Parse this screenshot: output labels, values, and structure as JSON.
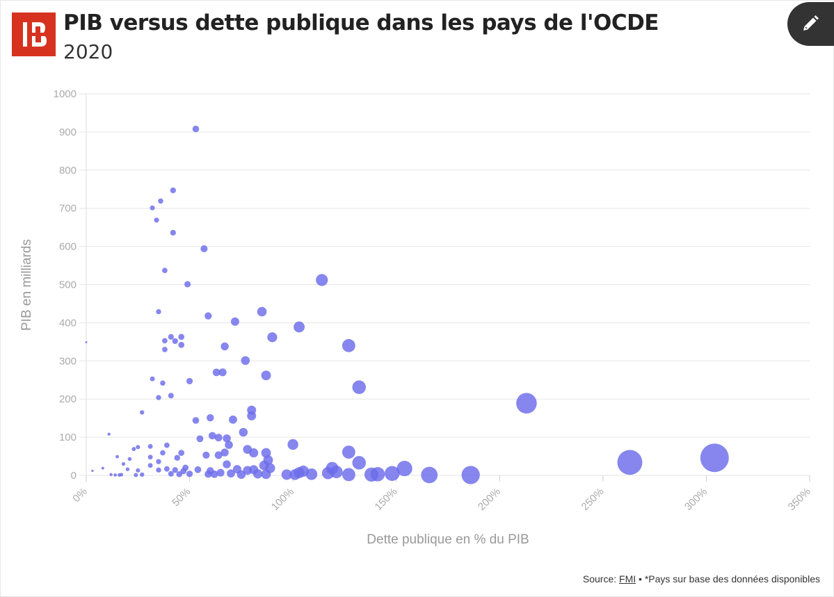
{
  "header": {
    "title": "PIB versus dette publique dans les pays de l'OCDE",
    "subtitle": "2020",
    "logo_icon": "brand-logo-icon",
    "edit_icon": "pencil-icon"
  },
  "footer": {
    "source_label": "Source:",
    "source_link": "FMI",
    "note": "• *Pays sur base des données disponibles"
  },
  "colors": {
    "accent": "#6b6bea",
    "logo": "#d6321f"
  },
  "chart_data": {
    "type": "scatter",
    "title": "PIB versus dette publique dans les pays de l'OCDE",
    "subtitle": "2020",
    "xlabel": "Dette publique en % du PIB",
    "ylabel": "PIB en milliards",
    "xlim": [
      0,
      350
    ],
    "ylim": [
      0,
      1000
    ],
    "x_ticks": [
      0,
      50,
      100,
      150,
      200,
      250,
      300,
      350
    ],
    "x_tick_labels": [
      "0%",
      "50%",
      "100%",
      "150%",
      "200%",
      "250%",
      "300%",
      "350%"
    ],
    "y_ticks": [
      0,
      100,
      200,
      300,
      400,
      500,
      600,
      700,
      800,
      900,
      1000
    ],
    "y_tick_labels": [
      "0",
      "100",
      "200",
      "300",
      "400",
      "500",
      "600",
      "700",
      "800",
      "900",
      "1000"
    ],
    "grid": true,
    "bubble_size": "Dette publique en % du PIB",
    "points": [
      {
        "x": 0,
        "y": 349
      },
      {
        "x": 3,
        "y": 12
      },
      {
        "x": 8,
        "y": 19
      },
      {
        "x": 11,
        "y": 108
      },
      {
        "x": 12,
        "y": 2
      },
      {
        "x": 14,
        "y": 1
      },
      {
        "x": 15,
        "y": 49
      },
      {
        "x": 16,
        "y": 1
      },
      {
        "x": 17,
        "y": 2
      },
      {
        "x": 18,
        "y": 30
      },
      {
        "x": 20,
        "y": 16
      },
      {
        "x": 21,
        "y": 43
      },
      {
        "x": 23,
        "y": 69
      },
      {
        "x": 24,
        "y": 1
      },
      {
        "x": 25,
        "y": 74
      },
      {
        "x": 25,
        "y": 13
      },
      {
        "x": 27,
        "y": 2
      },
      {
        "x": 27,
        "y": 165
      },
      {
        "x": 31,
        "y": 76
      },
      {
        "x": 31,
        "y": 26
      },
      {
        "x": 31,
        "y": 48
      },
      {
        "x": 32,
        "y": 253
      },
      {
        "x": 32,
        "y": 701
      },
      {
        "x": 34,
        "y": 669
      },
      {
        "x": 35,
        "y": 429
      },
      {
        "x": 35,
        "y": 36
      },
      {
        "x": 35,
        "y": 14
      },
      {
        "x": 35,
        "y": 204
      },
      {
        "x": 36,
        "y": 719
      },
      {
        "x": 37,
        "y": 242
      },
      {
        "x": 37,
        "y": 59
      },
      {
        "x": 38,
        "y": 353
      },
      {
        "x": 38,
        "y": 537
      },
      {
        "x": 38,
        "y": 330
      },
      {
        "x": 39,
        "y": 79
      },
      {
        "x": 39,
        "y": 17
      },
      {
        "x": 41,
        "y": 209
      },
      {
        "x": 41,
        "y": 363
      },
      {
        "x": 41,
        "y": 4
      },
      {
        "x": 42,
        "y": 636
      },
      {
        "x": 42,
        "y": 747
      },
      {
        "x": 43,
        "y": 352
      },
      {
        "x": 43,
        "y": 14
      },
      {
        "x": 44,
        "y": 46
      },
      {
        "x": 45,
        "y": 3
      },
      {
        "x": 46,
        "y": 342
      },
      {
        "x": 46,
        "y": 363
      },
      {
        "x": 46,
        "y": 59
      },
      {
        "x": 47,
        "y": 11
      },
      {
        "x": 48,
        "y": 20
      },
      {
        "x": 49,
        "y": 501
      },
      {
        "x": 50,
        "y": 4
      },
      {
        "x": 50,
        "y": 247
      },
      {
        "x": 53,
        "y": 908
      },
      {
        "x": 53,
        "y": 144
      },
      {
        "x": 54,
        "y": 15
      },
      {
        "x": 55,
        "y": 96
      },
      {
        "x": 57,
        "y": 594
      },
      {
        "x": 58,
        "y": 53
      },
      {
        "x": 59,
        "y": 3
      },
      {
        "x": 59,
        "y": 418
      },
      {
        "x": 60,
        "y": 12
      },
      {
        "x": 60,
        "y": 151
      },
      {
        "x": 61,
        "y": 104
      },
      {
        "x": 62,
        "y": 3
      },
      {
        "x": 63,
        "y": 270
      },
      {
        "x": 64,
        "y": 53
      },
      {
        "x": 64,
        "y": 99
      },
      {
        "x": 65,
        "y": 7
      },
      {
        "x": 66,
        "y": 270
      },
      {
        "x": 67,
        "y": 338
      },
      {
        "x": 67,
        "y": 60
      },
      {
        "x": 68,
        "y": 29
      },
      {
        "x": 68,
        "y": 97
      },
      {
        "x": 69,
        "y": 80
      },
      {
        "x": 70,
        "y": 5
      },
      {
        "x": 71,
        "y": 146
      },
      {
        "x": 72,
        "y": 403
      },
      {
        "x": 73,
        "y": 16
      },
      {
        "x": 75,
        "y": 2
      },
      {
        "x": 76,
        "y": 113
      },
      {
        "x": 77,
        "y": 301
      },
      {
        "x": 78,
        "y": 13
      },
      {
        "x": 78,
        "y": 68
      },
      {
        "x": 80,
        "y": 171
      },
      {
        "x": 80,
        "y": 156
      },
      {
        "x": 81,
        "y": 59
      },
      {
        "x": 81,
        "y": 15
      },
      {
        "x": 83,
        "y": 4
      },
      {
        "x": 85,
        "y": 429
      },
      {
        "x": 86,
        "y": 26
      },
      {
        "x": 87,
        "y": 262
      },
      {
        "x": 87,
        "y": 59
      },
      {
        "x": 87,
        "y": 3
      },
      {
        "x": 88,
        "y": 40
      },
      {
        "x": 89,
        "y": 19
      },
      {
        "x": 90,
        "y": 362
      },
      {
        "x": 97,
        "y": 2
      },
      {
        "x": 100,
        "y": 81
      },
      {
        "x": 101,
        "y": 2
      },
      {
        "x": 103,
        "y": 7
      },
      {
        "x": 103,
        "y": 389
      },
      {
        "x": 105,
        "y": 11
      },
      {
        "x": 109,
        "y": 3
      },
      {
        "x": 114,
        "y": 512
      },
      {
        "x": 117,
        "y": 6
      },
      {
        "x": 119,
        "y": 19
      },
      {
        "x": 121,
        "y": 9
      },
      {
        "x": 127,
        "y": 340
      },
      {
        "x": 127,
        "y": 61
      },
      {
        "x": 127,
        "y": 2
      },
      {
        "x": 132,
        "y": 231
      },
      {
        "x": 132,
        "y": 33
      },
      {
        "x": 138,
        "y": 2
      },
      {
        "x": 141,
        "y": 3
      },
      {
        "x": 148,
        "y": 5
      },
      {
        "x": 154,
        "y": 18
      },
      {
        "x": 166,
        "y": 1
      },
      {
        "x": 186,
        "y": 1
      },
      {
        "x": 213,
        "y": 189
      },
      {
        "x": 263,
        "y": 34
      },
      {
        "x": 304,
        "y": 46
      }
    ]
  }
}
